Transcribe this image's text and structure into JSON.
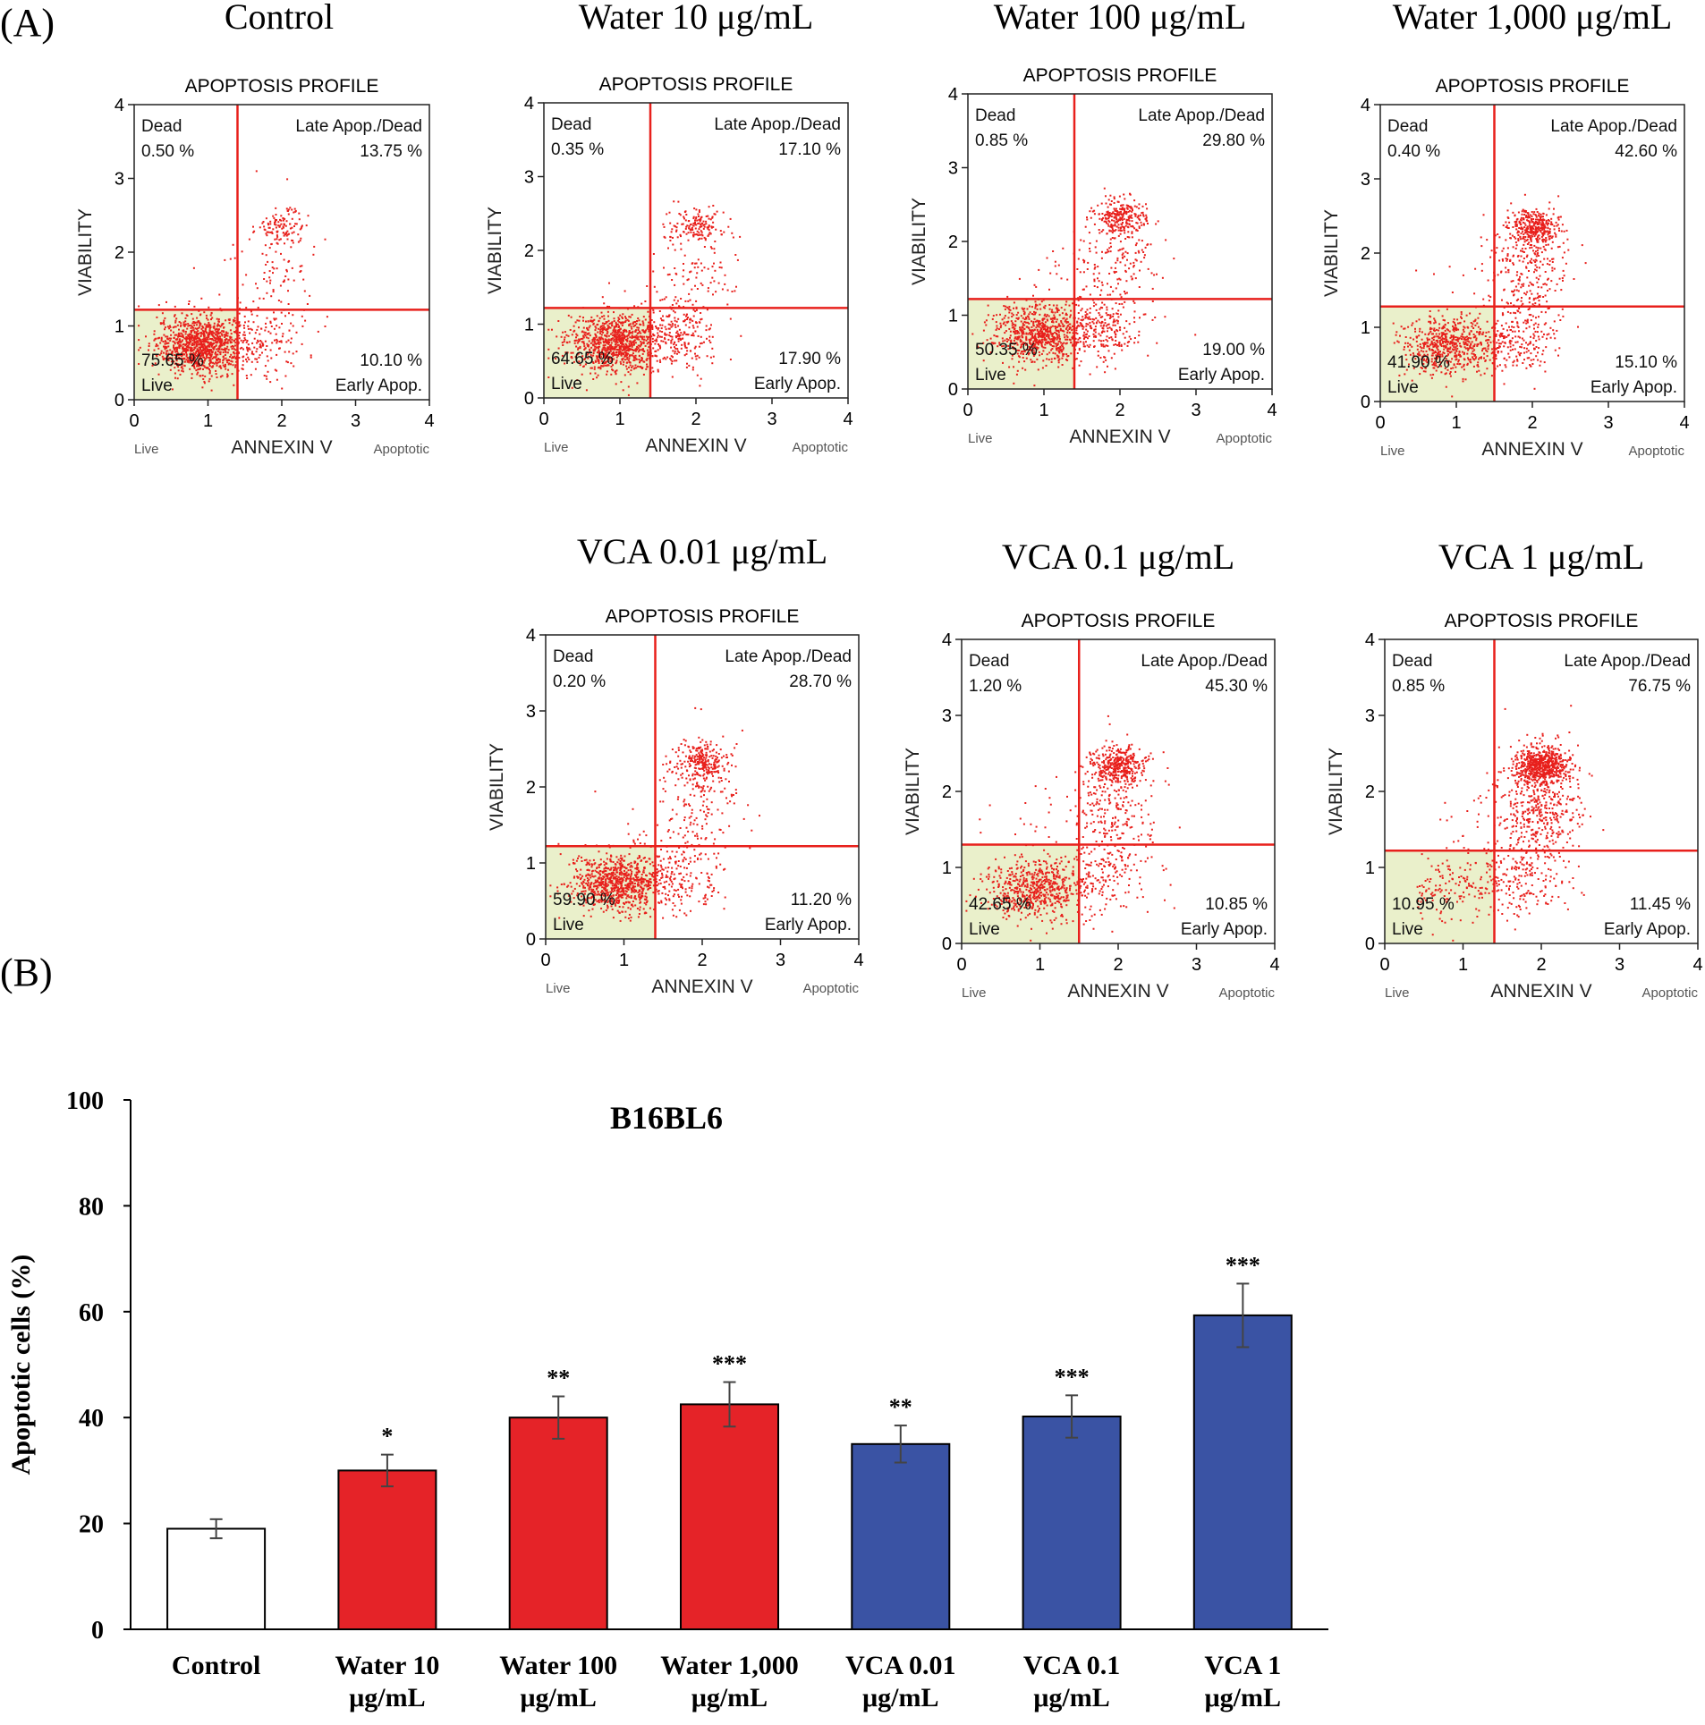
{
  "panel_labels": {
    "a": "(A)",
    "b": "(B)"
  },
  "chart_data": [
    {
      "type": "scatter",
      "panel": "A",
      "common": {
        "plot_title": "APOPTOSIS PROFILE",
        "xlabel": "ANNEXIN V",
        "ylabel": "VIABILITY",
        "x_left_label": "Live",
        "x_right_label": "Apoptotic",
        "xlim": [
          0,
          4
        ],
        "ylim": [
          0,
          4
        ],
        "xticks": [
          "0",
          "1",
          "2",
          "3",
          "4"
        ],
        "yticks": [
          "0",
          "1",
          "2",
          "3",
          "4"
        ],
        "quadrant_names": {
          "dead": "Dead",
          "late": "Late Apop./Dead",
          "live": "Live",
          "early": "Early Apop."
        }
      },
      "plots": [
        {
          "title": "Control",
          "x_gate": 1.4,
          "y_gate": 1.22,
          "dead": "0.50 %",
          "late": "13.75 %",
          "live": "75.65 %",
          "early": "10.10 %"
        },
        {
          "title": "Water 10 μg/mL",
          "x_gate": 1.4,
          "y_gate": 1.22,
          "dead": "0.35 %",
          "late": "17.10 %",
          "live": "64.65 %",
          "early": "17.90 %"
        },
        {
          "title": "Water 100 μg/mL",
          "x_gate": 1.4,
          "y_gate": 1.22,
          "dead": "0.85 %",
          "late": "29.80 %",
          "live": "50.35 %",
          "early": "19.00 %"
        },
        {
          "title": "Water 1,000 μg/mL",
          "x_gate": 1.5,
          "y_gate": 1.28,
          "dead": "0.40 %",
          "late": "42.60 %",
          "live": "41.90 %",
          "early": "15.10 %"
        },
        {
          "title": "VCA 0.01 μg/mL",
          "x_gate": 1.4,
          "y_gate": 1.22,
          "dead": "0.20 %",
          "late": "28.70 %",
          "live": "59.90 %",
          "early": "11.20 %"
        },
        {
          "title": "VCA 0.1 μg/mL",
          "x_gate": 1.5,
          "y_gate": 1.3,
          "dead": "1.20 %",
          "late": "45.30 %",
          "live": "42.65 %",
          "early": "10.85 %"
        },
        {
          "title": "VCA 1 μg/mL",
          "x_gate": 1.4,
          "y_gate": 1.22,
          "dead": "0.85 %",
          "late": "76.75 %",
          "live": "10.95 %",
          "early": "11.45 %"
        }
      ]
    },
    {
      "type": "bar",
      "panel": "B",
      "title": "B16BL6",
      "xlabel": "",
      "ylabel": "Apoptotic cells (%)",
      "ylim": [
        0,
        100
      ],
      "yticks": [
        "0",
        "20",
        "40",
        "60",
        "80",
        "100"
      ],
      "categories": [
        [
          "Control"
        ],
        [
          "Water 10",
          "μg/mL"
        ],
        [
          "Water 100",
          "μg/mL"
        ],
        [
          "Water 1,000",
          "μg/mL"
        ],
        [
          "VCA 0.01",
          "μg/mL"
        ],
        [
          "VCA 0.1",
          "μg/mL"
        ],
        [
          "VCA 1",
          "μg/mL"
        ]
      ],
      "values": [
        19,
        30,
        40,
        42.5,
        35,
        40.2,
        59.3
      ],
      "errors": [
        1.8,
        3,
        4,
        4.2,
        3.5,
        4,
        6
      ],
      "significance": [
        "",
        "*",
        "**",
        "***",
        "**",
        "***",
        "***"
      ],
      "colors": [
        "#ffffff",
        "#e52328",
        "#e52328",
        "#e52328",
        "#3a53a4",
        "#3a53a4",
        "#3a53a4"
      ]
    }
  ],
  "colors": {
    "dot": "#e8201c",
    "gate": "#e8201c",
    "live_fill": "#eaf0cb"
  }
}
